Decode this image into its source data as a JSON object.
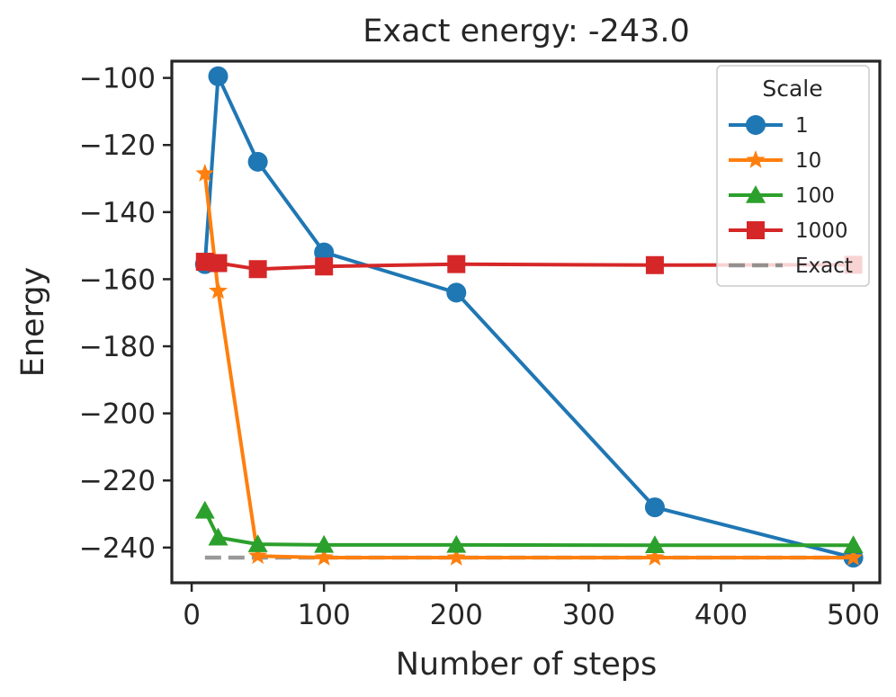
{
  "chart_data": {
    "type": "line",
    "title": "Exact energy: -243.0",
    "xlabel": "Number of steps",
    "ylabel": "Energy",
    "xlim": [
      -15,
      520
    ],
    "ylim": [
      -250.5,
      -95
    ],
    "x_ticks": [
      0,
      100,
      200,
      300,
      400,
      500
    ],
    "x_tick_labels": [
      "0",
      "100",
      "200",
      "300",
      "400",
      "500"
    ],
    "y_ticks": [
      -100,
      -120,
      -140,
      -160,
      -180,
      -200,
      -220,
      -240
    ],
    "y_tick_labels": [
      "−100",
      "−120",
      "−140",
      "−160",
      "−180",
      "−200",
      "−220",
      "−240"
    ],
    "grid": false,
    "legend": {
      "title": "Scale",
      "position": "top-right"
    },
    "x": [
      10,
      20,
      50,
      100,
      200,
      350,
      500
    ],
    "series": [
      {
        "name": "1",
        "marker": "circle",
        "color": "#1f77b4",
        "values": [
          -155.5,
          -99.5,
          -125,
          -152,
          -164,
          -228,
          -243
        ]
      },
      {
        "name": "10",
        "marker": "star",
        "color": "#ff7f0e",
        "values": [
          -128.5,
          -163.5,
          -242.5,
          -243,
          -243,
          -243,
          -243
        ]
      },
      {
        "name": "100",
        "marker": "triangle",
        "color": "#2ca02c",
        "values": [
          -229,
          -237,
          -239,
          -239.2,
          -239.2,
          -239.3,
          -239.3
        ]
      },
      {
        "name": "1000",
        "marker": "square",
        "color": "#d62728",
        "values": [
          -154.8,
          -155.2,
          -157,
          -156.2,
          -155.5,
          -155.8,
          -155.7
        ]
      },
      {
        "name": "Exact",
        "marker": "none",
        "dashed": true,
        "color": "#7f7f7f",
        "values": [
          -243,
          -243,
          -243,
          -243,
          -243,
          -243,
          -243
        ]
      }
    ]
  }
}
